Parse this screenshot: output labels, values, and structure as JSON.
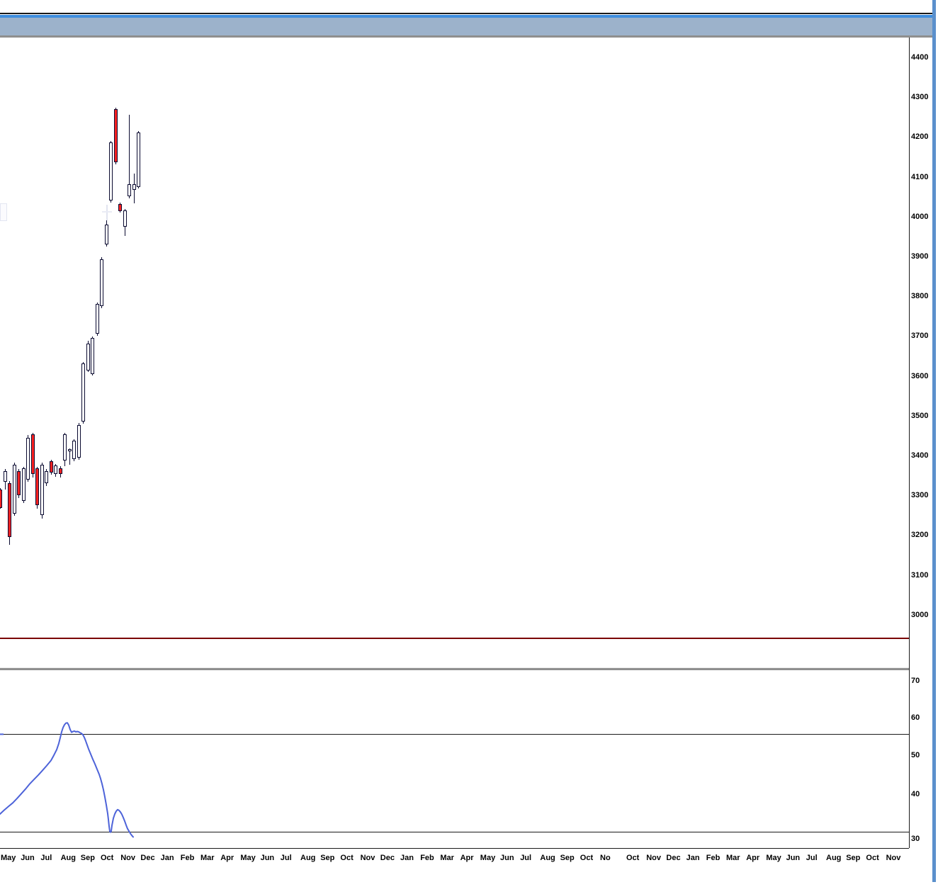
{
  "titlebar": {
    "bar_color": "#9cb2cb",
    "accent_color": "#3f8ede",
    "border_color": "#8f8f8f"
  },
  "scrollbar": {
    "color": "#5b90cc"
  },
  "chart_data": {
    "type": "candlestick",
    "panels": [
      {
        "name": "price",
        "y_axis": {
          "side": "right",
          "labels": [
            "4400",
            "4300",
            "4200",
            "4100",
            "4000",
            "3900",
            "3800",
            "3700",
            "3600",
            "3500",
            "3400",
            "3300",
            "3200",
            "3100",
            "3000"
          ]
        },
        "series": {
          "name": "ohlc-candles",
          "up_color": "#ffffff",
          "down_color": "#fb2121",
          "outline_color": "#0a0a30",
          "candles_ohlc": [
            [
              3310,
              3312,
              3262,
              3263
            ],
            [
              3328,
              3360,
              3310,
              3355
            ],
            [
              3326,
              3330,
              3170,
              3190
            ],
            [
              3249,
              3376,
              3243,
              3372
            ],
            [
              3355,
              3360,
              3288,
              3295
            ],
            [
              3280,
              3366,
              3275,
              3362
            ],
            [
              3334,
              3446,
              3328,
              3440
            ],
            [
              3448,
              3452,
              3340,
              3348
            ],
            [
              3362,
              3366,
              3262,
              3270
            ],
            [
              3246,
              3376,
              3236,
              3372
            ],
            [
              3325,
              3360,
              3318,
              3356
            ],
            [
              3380,
              3384,
              3346,
              3352
            ],
            [
              3348,
              3374,
              3342,
              3370
            ],
            [
              3362,
              3368,
              3340,
              3348
            ],
            [
              3383,
              3452,
              3368,
              3448
            ],
            [
              3406,
              3412,
              3372,
              3410
            ],
            [
              3386,
              3436,
              3380,
              3432
            ],
            [
              3390,
              3476,
              3384,
              3472
            ],
            [
              3480,
              3630,
              3474,
              3626
            ],
            [
              3608,
              3683,
              3605,
              3676
            ],
            [
              3600,
              3694,
              3596,
              3690
            ],
            [
              3701,
              3779,
              3695,
              3775
            ],
            [
              3770,
              3892,
              3764,
              3888
            ],
            [
              3925,
              4018,
              3920,
              3975
            ],
            [
              4035,
              4185,
              4030,
              4181
            ],
            [
              4265,
              4268,
              4126,
              4131
            ],
            [
              4026,
              4030,
              4005,
              4009
            ],
            [
              3970,
              4014,
              3946,
              4011
            ],
            [
              4046,
              4251,
              4040,
              4076
            ],
            [
              4062,
              4103,
              4028,
              4076
            ],
            [
              4069,
              4210,
              4065,
              4206
            ]
          ]
        },
        "horizontal_line": {
          "color": "#7a0101",
          "price": 2937
        }
      },
      {
        "name": "indicator",
        "y_axis": {
          "side": "right",
          "labels": [
            "70",
            "60",
            "50",
            "40",
            "30"
          ]
        },
        "ref_lines": [
          56,
          31.4
        ],
        "line": {
          "color": "#4d63d9",
          "points": [
            [
              0,
              35.9
            ],
            [
              6,
              36.9
            ],
            [
              12,
              37.8
            ],
            [
              18,
              38.7
            ],
            [
              24,
              39.8
            ],
            [
              30,
              41.0
            ],
            [
              36,
              42.2
            ],
            [
              42,
              43.5
            ],
            [
              48,
              44.6
            ],
            [
              54,
              45.7
            ],
            [
              60,
              46.9
            ],
            [
              66,
              48.1
            ],
            [
              72,
              49.4
            ],
            [
              76,
              50.7
            ],
            [
              80,
              52.1
            ],
            [
              83,
              53.7
            ],
            [
              85,
              55.1
            ],
            [
              87,
              56.6
            ],
            [
              89,
              57.7
            ],
            [
              91,
              58.4
            ],
            [
              93,
              58.8
            ],
            [
              95,
              58.9
            ],
            [
              97,
              58.3
            ],
            [
              99,
              57.2
            ],
            [
              101,
              56.5
            ],
            [
              103,
              56.7
            ],
            [
              105,
              56.8
            ],
            [
              107,
              56.6
            ],
            [
              109,
              56.7
            ],
            [
              111,
              56.6
            ],
            [
              113,
              56.4
            ],
            [
              115,
              56.2
            ],
            [
              117,
              55.9
            ],
            [
              119,
              55.2
            ],
            [
              121,
              54.3
            ],
            [
              123,
              53.3
            ],
            [
              125,
              52.3
            ],
            [
              128,
              51.0
            ],
            [
              131,
              49.7
            ],
            [
              134,
              48.5
            ],
            [
              137,
              47.2
            ],
            [
              140,
              45.9
            ],
            [
              142,
              44.8
            ],
            [
              144,
              43.5
            ],
            [
              146,
              42.0
            ],
            [
              148,
              40.2
            ],
            [
              150,
              38.2
            ],
            [
              152,
              36.0
            ],
            [
              153,
              34.5
            ],
            [
              154,
              32.8
            ],
            [
              155,
              31.5
            ],
            [
              156,
              31.3
            ],
            [
              157,
              31.6
            ],
            [
              158,
              33.0
            ],
            [
              160,
              34.8
            ],
            [
              162,
              35.9
            ],
            [
              164,
              36.6
            ],
            [
              166,
              37.0
            ],
            [
              168,
              36.8
            ],
            [
              170,
              36.4
            ],
            [
              172,
              35.8
            ],
            [
              174,
              35.0
            ],
            [
              176,
              34.1
            ],
            [
              178,
              33.1
            ],
            [
              180,
              32.2
            ],
            [
              182,
              31.6
            ],
            [
              184,
              31.0
            ],
            [
              186,
              30.5
            ],
            [
              188,
              30.1
            ]
          ]
        }
      }
    ],
    "x_axis": {
      "timeline1": [
        "May",
        "Jun",
        "Jul",
        "Aug",
        "Sep",
        "Oct",
        "Nov",
        "Dec",
        "Jan",
        "Feb",
        "Mar",
        "Apr",
        "May",
        "Jun",
        "Jul",
        "Aug",
        "Sep",
        "Oct",
        "Nov",
        "Dec",
        "Jan",
        "Feb",
        "Mar",
        "Apr",
        "May",
        "Jun",
        "Jul",
        "Aug",
        "Sep",
        "Oct",
        "No"
      ],
      "timeline2": [
        "Oct",
        "Nov",
        "Dec",
        "Jan",
        "Feb",
        "Mar",
        "Apr",
        "May",
        "Jun",
        "Jul",
        "Aug",
        "Sep",
        "Oct",
        "Nov"
      ]
    }
  }
}
